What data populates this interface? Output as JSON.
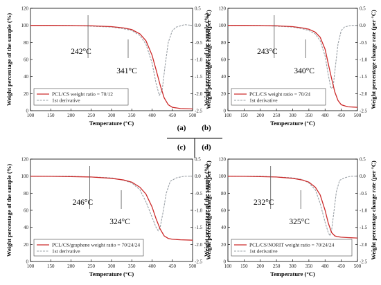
{
  "chart_data": [
    {
      "type": "line",
      "panel": "(a)",
      "xlabel": "Temperature (°C)",
      "ylabel": "Weight percentage of the sample (%)",
      "ylabel_right": "Weight percentage change rate (per °C)",
      "xlim": [
        100,
        500
      ],
      "ylim": [
        0,
        120
      ],
      "ylim_right": [
        -2.5,
        0.5
      ],
      "x_ticks": [
        "100",
        "150",
        "200",
        "250",
        "300",
        "350",
        "400",
        "450",
        "500"
      ],
      "y_ticks": [
        "0",
        "20",
        "40",
        "60",
        "80",
        "100",
        "120"
      ],
      "y2_ticks": [
        "-2.5",
        "-2.0",
        "-1.5",
        "-1.0",
        "-0.5",
        "0.0",
        "0.5"
      ],
      "annotations": [
        {
          "text": "242°C",
          "x": 242
        },
        {
          "text": "341°C",
          "x": 341
        }
      ],
      "series": [
        {
          "name": "PCL/CS weight ratio = 70/12",
          "axis": "left",
          "x": [
            100,
            150,
            200,
            250,
            300,
            330,
            350,
            370,
            385,
            400,
            410,
            420,
            430,
            440,
            450,
            470,
            500
          ],
          "values": [
            100,
            100,
            99.8,
            99.5,
            98.5,
            97,
            95,
            90,
            82,
            65,
            48,
            30,
            15,
            7,
            4,
            2.5,
            2
          ]
        },
        {
          "name": "1st derivative",
          "axis": "right",
          "x": [
            100,
            200,
            300,
            330,
            350,
            370,
            385,
            400,
            410,
            418,
            425,
            432,
            440,
            450,
            460,
            480,
            500
          ],
          "values": [
            0,
            0,
            -0.05,
            -0.1,
            -0.15,
            -0.3,
            -0.55,
            -1.1,
            -1.7,
            -2.05,
            -1.9,
            -1.2,
            -0.5,
            -0.15,
            -0.05,
            0.02,
            0
          ]
        }
      ]
    },
    {
      "type": "line",
      "panel": "(b)",
      "xlabel": "Temperature (°C)",
      "ylabel": "Weight percentage of the sample (%)",
      "ylabel_right": "Weight percentage change rate (per °C)",
      "xlim": [
        100,
        500
      ],
      "ylim": [
        0,
        120
      ],
      "ylim_right": [
        -2.5,
        0.5
      ],
      "x_ticks": [
        "100",
        "150",
        "200",
        "250",
        "300",
        "350",
        "400",
        "450",
        "500"
      ],
      "y_ticks": [
        "0",
        "20",
        "40",
        "60",
        "80",
        "100",
        "120"
      ],
      "y2_ticks": [
        "-2.5",
        "-2.0",
        "-1.5",
        "-1.0",
        "-0.5",
        "0.0",
        "0.5"
      ],
      "annotations": [
        {
          "text": "243°C",
          "x": 243
        },
        {
          "text": "340°C",
          "x": 340
        }
      ],
      "series": [
        {
          "name": "PCL/CS weight ratio = 70/24",
          "axis": "left",
          "x": [
            100,
            150,
            200,
            250,
            300,
            330,
            350,
            370,
            385,
            400,
            410,
            420,
            430,
            440,
            450,
            470,
            500
          ],
          "values": [
            100,
            100,
            99.8,
            99.5,
            98.5,
            97,
            95.5,
            92,
            86,
            72,
            55,
            38,
            22,
            12,
            7,
            4.5,
            4
          ]
        },
        {
          "name": "1st derivative",
          "axis": "right",
          "x": [
            100,
            200,
            300,
            330,
            350,
            370,
            385,
            400,
            410,
            418,
            425,
            432,
            440,
            450,
            460,
            480,
            500
          ],
          "values": [
            0,
            0,
            -0.05,
            -0.1,
            -0.15,
            -0.25,
            -0.45,
            -0.9,
            -1.45,
            -1.85,
            -1.8,
            -1.2,
            -0.55,
            -0.15,
            -0.05,
            0,
            0
          ]
        }
      ]
    },
    {
      "type": "line",
      "panel": "(c)",
      "xlabel": "Temperature (°C)",
      "ylabel": "Weight percentage of the sample (%)",
      "ylabel_right": "Weight percentage change rate (per °C)",
      "xlim": [
        100,
        500
      ],
      "ylim": [
        0,
        120
      ],
      "ylim_right": [
        -2.5,
        0.5
      ],
      "x_ticks": [
        "100",
        "150",
        "200",
        "250",
        "300",
        "350",
        "400",
        "450",
        "500"
      ],
      "y_ticks": [
        "0",
        "20",
        "40",
        "60",
        "80",
        "100",
        "120"
      ],
      "y2_ticks": [
        "-2.5",
        "-2.0",
        "-1.5",
        "-1.0",
        "-0.5",
        "0.0",
        "0.5"
      ],
      "annotations": [
        {
          "text": "246°C",
          "x": 246
        },
        {
          "text": "324°C",
          "x": 324
        }
      ],
      "series": [
        {
          "name": "PCL/CS/graphene weight ratio = 70/24/24",
          "axis": "left",
          "x": [
            100,
            150,
            200,
            250,
            300,
            330,
            350,
            370,
            385,
            400,
            410,
            420,
            430,
            440,
            450,
            470,
            500
          ],
          "values": [
            100,
            99.8,
            99.5,
            99,
            97.5,
            95.5,
            93,
            87,
            79,
            64,
            50,
            38,
            30,
            27,
            26,
            25.5,
            25
          ]
        },
        {
          "name": "1st derivative",
          "axis": "right",
          "x": [
            100,
            200,
            300,
            330,
            350,
            370,
            385,
            400,
            410,
            415,
            420,
            428,
            435,
            445,
            460,
            480,
            500
          ],
          "values": [
            0,
            0,
            -0.05,
            -0.12,
            -0.2,
            -0.4,
            -0.75,
            -1.2,
            -1.5,
            -1.6,
            -1.5,
            -1.0,
            -0.5,
            -0.15,
            -0.05,
            0,
            0
          ]
        }
      ]
    },
    {
      "type": "line",
      "panel": "(d)",
      "xlabel": "Temperature (°C)",
      "ylabel": "Weight percentage of the sample (%)",
      "ylabel_right": "Weight percentage change rate (per °C)",
      "xlim": [
        100,
        500
      ],
      "ylim": [
        0,
        120
      ],
      "ylim_right": [
        -2.5,
        0.5
      ],
      "x_ticks": [
        "100",
        "150",
        "200",
        "250",
        "300",
        "350",
        "400",
        "450",
        "500"
      ],
      "y_ticks": [
        "0",
        "20",
        "40",
        "60",
        "80",
        "100",
        "120"
      ],
      "y2_ticks": [
        "-2.5",
        "-2.0",
        "-1.5",
        "-1.0",
        "-0.5",
        "0.0",
        "0.5"
      ],
      "annotations": [
        {
          "text": "232°C",
          "x": 232
        },
        {
          "text": "325°C",
          "x": 325
        }
      ],
      "series": [
        {
          "name": "PCL/CS/NORIT weight ratio = 70/24/24",
          "axis": "left",
          "x": [
            100,
            150,
            200,
            250,
            300,
            330,
            350,
            370,
            385,
            400,
            410,
            420,
            430,
            440,
            450,
            470,
            500
          ],
          "values": [
            100,
            99.8,
            99.5,
            99,
            97.5,
            95.5,
            93,
            87,
            78,
            60,
            45,
            34,
            30,
            29,
            28.5,
            28,
            27.5
          ]
        },
        {
          "name": "1st derivative",
          "axis": "right",
          "x": [
            100,
            200,
            300,
            330,
            350,
            370,
            385,
            400,
            410,
            415,
            420,
            428,
            435,
            445,
            460,
            480,
            500
          ],
          "values": [
            0,
            0,
            -0.05,
            -0.1,
            -0.2,
            -0.4,
            -0.8,
            -1.35,
            -1.65,
            -1.75,
            -1.6,
            -1.0,
            -0.45,
            -0.12,
            -0.05,
            0,
            0
          ]
        }
      ]
    }
  ],
  "panel_labels": [
    "(a)",
    "(b)",
    "(c)",
    "(d)"
  ],
  "colors": {
    "weight": "#cc2a2a",
    "derivative": "#9aa0a6",
    "text": "#000000"
  }
}
